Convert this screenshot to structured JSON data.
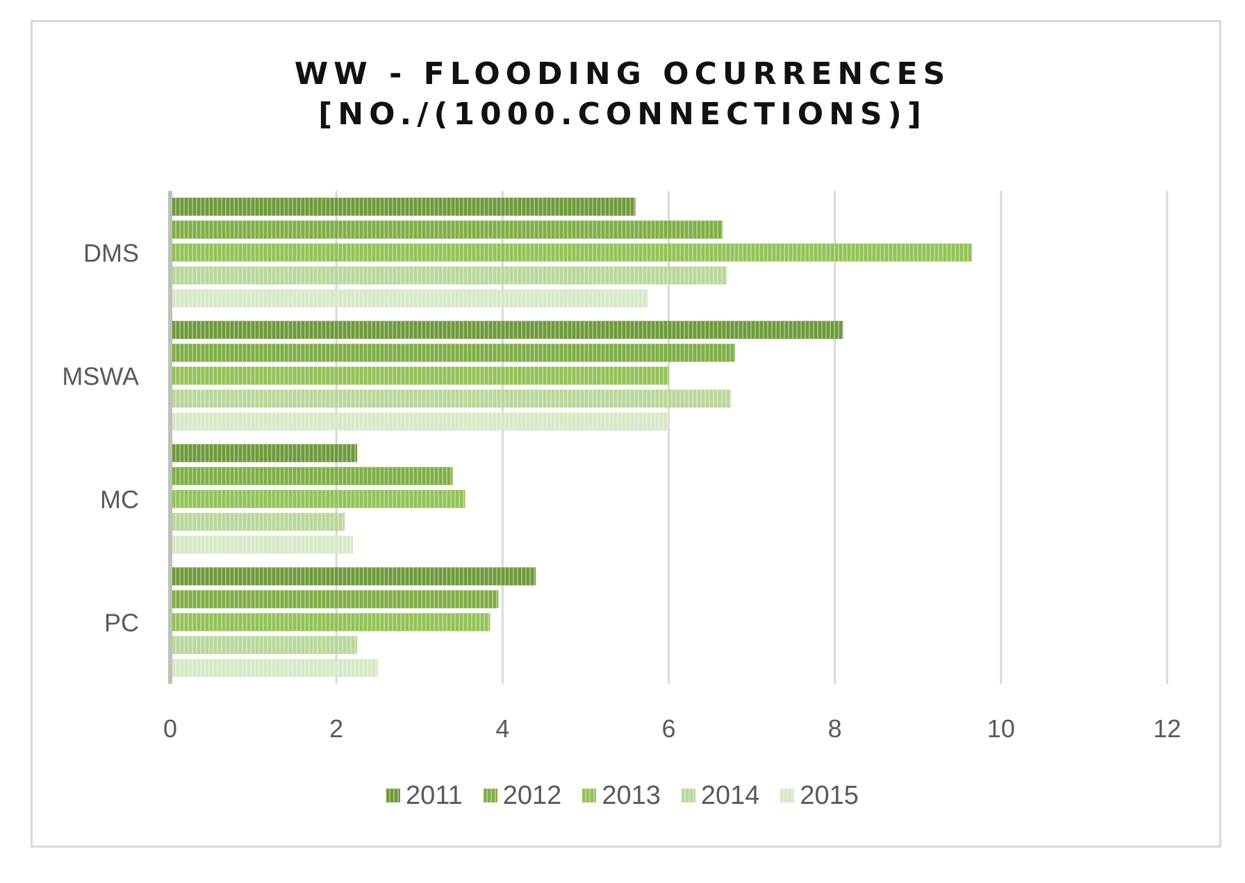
{
  "chart_data": {
    "type": "bar",
    "orientation": "horizontal",
    "title": [
      "WW - FLOODING OCURRENCES",
      "[NO./(1000.CONNECTIONS)]"
    ],
    "categories": [
      "DMS",
      "MSWA",
      "MC",
      "PC"
    ],
    "series": [
      {
        "name": "2011",
        "values": [
          5.6,
          8.1,
          2.25,
          4.4
        ],
        "color": "#6f9a3a"
      },
      {
        "name": "2012",
        "values": [
          6.65,
          6.8,
          3.4,
          3.95
        ],
        "color": "#7fae45"
      },
      {
        "name": "2013",
        "values": [
          9.65,
          6.0,
          3.55,
          3.85
        ],
        "color": "#93c257"
      },
      {
        "name": "2014",
        "values": [
          6.7,
          6.75,
          2.1,
          2.25
        ],
        "color": "#b9d79a"
      },
      {
        "name": "2015",
        "values": [
          5.75,
          6.0,
          2.2,
          2.5
        ],
        "color": "#d6e8c6"
      }
    ],
    "xlim": [
      0,
      12
    ],
    "xticks": [
      "0",
      "2",
      "4",
      "6",
      "8",
      "10",
      "12"
    ],
    "grid": true,
    "legend_position": "bottom",
    "xlabel": "",
    "ylabel": ""
  }
}
